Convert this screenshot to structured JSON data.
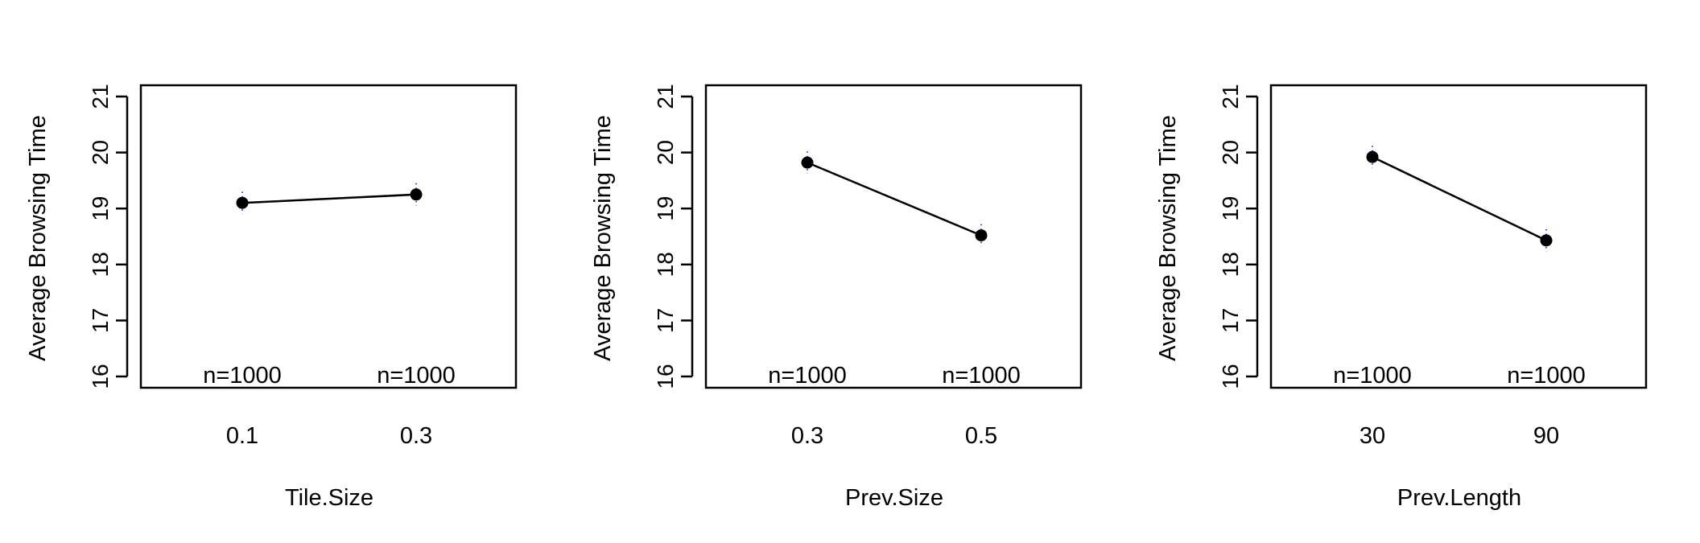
{
  "chart_data": [
    {
      "type": "line",
      "ylabel": "Average Browsing Time",
      "xlabel": "Tile.Size",
      "categories": [
        "0.1",
        "0.3"
      ],
      "values": [
        19.1,
        19.25
      ],
      "error_low": [
        18.9,
        19.05
      ],
      "error_high": [
        19.3,
        19.45
      ],
      "counts": [
        "n=1000",
        "n=1000"
      ],
      "ylim": [
        16,
        21
      ],
      "yticks": [
        "16",
        "17",
        "18",
        "19",
        "20",
        "21"
      ]
    },
    {
      "type": "line",
      "ylabel": "Average Browsing Time",
      "xlabel": "Prev.Size",
      "categories": [
        "0.3",
        "0.5"
      ],
      "values": [
        19.82,
        18.52
      ],
      "error_low": [
        19.62,
        18.32
      ],
      "error_high": [
        20.02,
        18.72
      ],
      "counts": [
        "n=1000",
        "n=1000"
      ],
      "ylim": [
        16,
        21
      ],
      "yticks": [
        "16",
        "17",
        "18",
        "19",
        "20",
        "21"
      ]
    },
    {
      "type": "line",
      "ylabel": "Average Browsing Time",
      "xlabel": "Prev.Length",
      "categories": [
        "30",
        "90"
      ],
      "values": [
        19.92,
        18.43
      ],
      "error_low": [
        19.72,
        18.23
      ],
      "error_high": [
        20.12,
        18.63
      ],
      "counts": [
        "n=1000",
        "n=1000"
      ],
      "ylim": [
        16,
        21
      ],
      "yticks": [
        "16",
        "17",
        "18",
        "19",
        "20",
        "21"
      ]
    }
  ],
  "colors": {
    "line": "#000000",
    "point": "#000000",
    "error_bar": "#0000ff",
    "frame": "#000000"
  }
}
